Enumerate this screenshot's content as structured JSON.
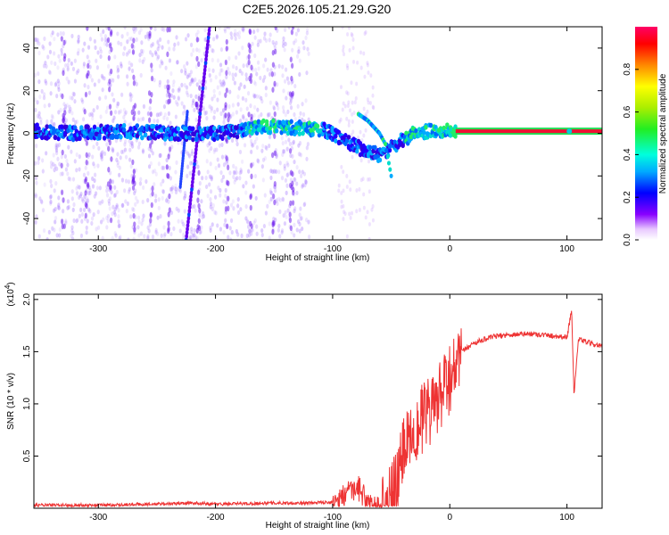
{
  "title": "C2E5.2026.105.21.29.G20",
  "chart_data": [
    {
      "type": "heatmap",
      "xlabel": "Height of straight line (km)",
      "ylabel": "Frequency (Hz)",
      "xlim": [
        -355,
        130
      ],
      "ylim": [
        -50,
        50
      ],
      "x_ticks": [
        "-300",
        "-200",
        "-100",
        "0",
        "100"
      ],
      "x_tick_values": [
        -300,
        -200,
        -100,
        0,
        100
      ],
      "y_ticks": [
        "-40",
        "-20",
        "0",
        "20",
        "40"
      ],
      "y_tick_values": [
        -40,
        -20,
        0,
        20,
        40
      ],
      "colorbar": {
        "label": "Normalized spectral amplitude",
        "range": [
          0,
          1
        ],
        "ticks": [
          "0.0",
          "0.2",
          "0.4",
          "0.6",
          "0.8"
        ],
        "tick_values": [
          0.0,
          0.2,
          0.4,
          0.6,
          0.8
        ]
      },
      "main_track": {
        "x": [
          -355,
          -320,
          -280,
          -240,
          -220,
          -200,
          -180,
          -160,
          -140,
          -120,
          -110,
          -100,
          -90,
          -80,
          -70,
          -60,
          -50,
          -40,
          -30,
          -20,
          -10,
          0,
          5
        ],
        "frequency": [
          1,
          0,
          1,
          0,
          0,
          0,
          1,
          3,
          3,
          2,
          2,
          0,
          -3,
          -6,
          -9,
          -10,
          -7,
          -3,
          0,
          1,
          1,
          1,
          1
        ]
      },
      "secondary_track": {
        "x": [
          -78,
          -70,
          -65,
          -60,
          -55,
          -50
        ],
        "frequency": [
          9,
          6,
          3,
          0,
          -5,
          -20
        ]
      },
      "constant_line": {
        "x": [
          5,
          130
        ],
        "frequency": 1
      }
    },
    {
      "type": "line",
      "xlabel": "Height of straight line (km)",
      "ylabel": "SNR (10 * v/v)",
      "scale_label": "(x10",
      "scale_exponent": "4",
      "xlim": [
        -355,
        130
      ],
      "ylim": [
        0,
        2.05
      ],
      "x_ticks": [
        "-300",
        "-200",
        "-100",
        "0",
        "100"
      ],
      "x_tick_values": [
        -300,
        -200,
        -100,
        0,
        100
      ],
      "y_ticks": [
        "0.5",
        "1.0",
        "1.5",
        "2.0"
      ],
      "y_tick_values": [
        0.5,
        1.0,
        1.5,
        2.0
      ],
      "color": "#ee3333",
      "series": [
        {
          "x": [
            -355,
            -300,
            -250,
            -220,
            -200,
            -150,
            -120,
            -100,
            -90,
            -80,
            -75,
            -70,
            -60,
            -55,
            -50,
            -45,
            -40,
            -35,
            -30,
            -25,
            -20,
            -15,
            -10,
            -5,
            0,
            5,
            10,
            20,
            30,
            40,
            50,
            60,
            70,
            80,
            90,
            100,
            104,
            106,
            110,
            120,
            130
          ],
          "values": [
            0.03,
            0.03,
            0.04,
            0.05,
            0.04,
            0.05,
            0.05,
            0.06,
            0.1,
            0.2,
            0.15,
            0.05,
            0.02,
            0.05,
            0.15,
            0.35,
            0.6,
            0.8,
            0.85,
            0.9,
            0.95,
            1.0,
            1.1,
            1.2,
            1.3,
            1.45,
            1.5,
            1.58,
            1.62,
            1.65,
            1.66,
            1.67,
            1.67,
            1.66,
            1.65,
            1.64,
            1.9,
            1.1,
            1.62,
            1.58,
            1.55
          ]
        }
      ]
    }
  ]
}
